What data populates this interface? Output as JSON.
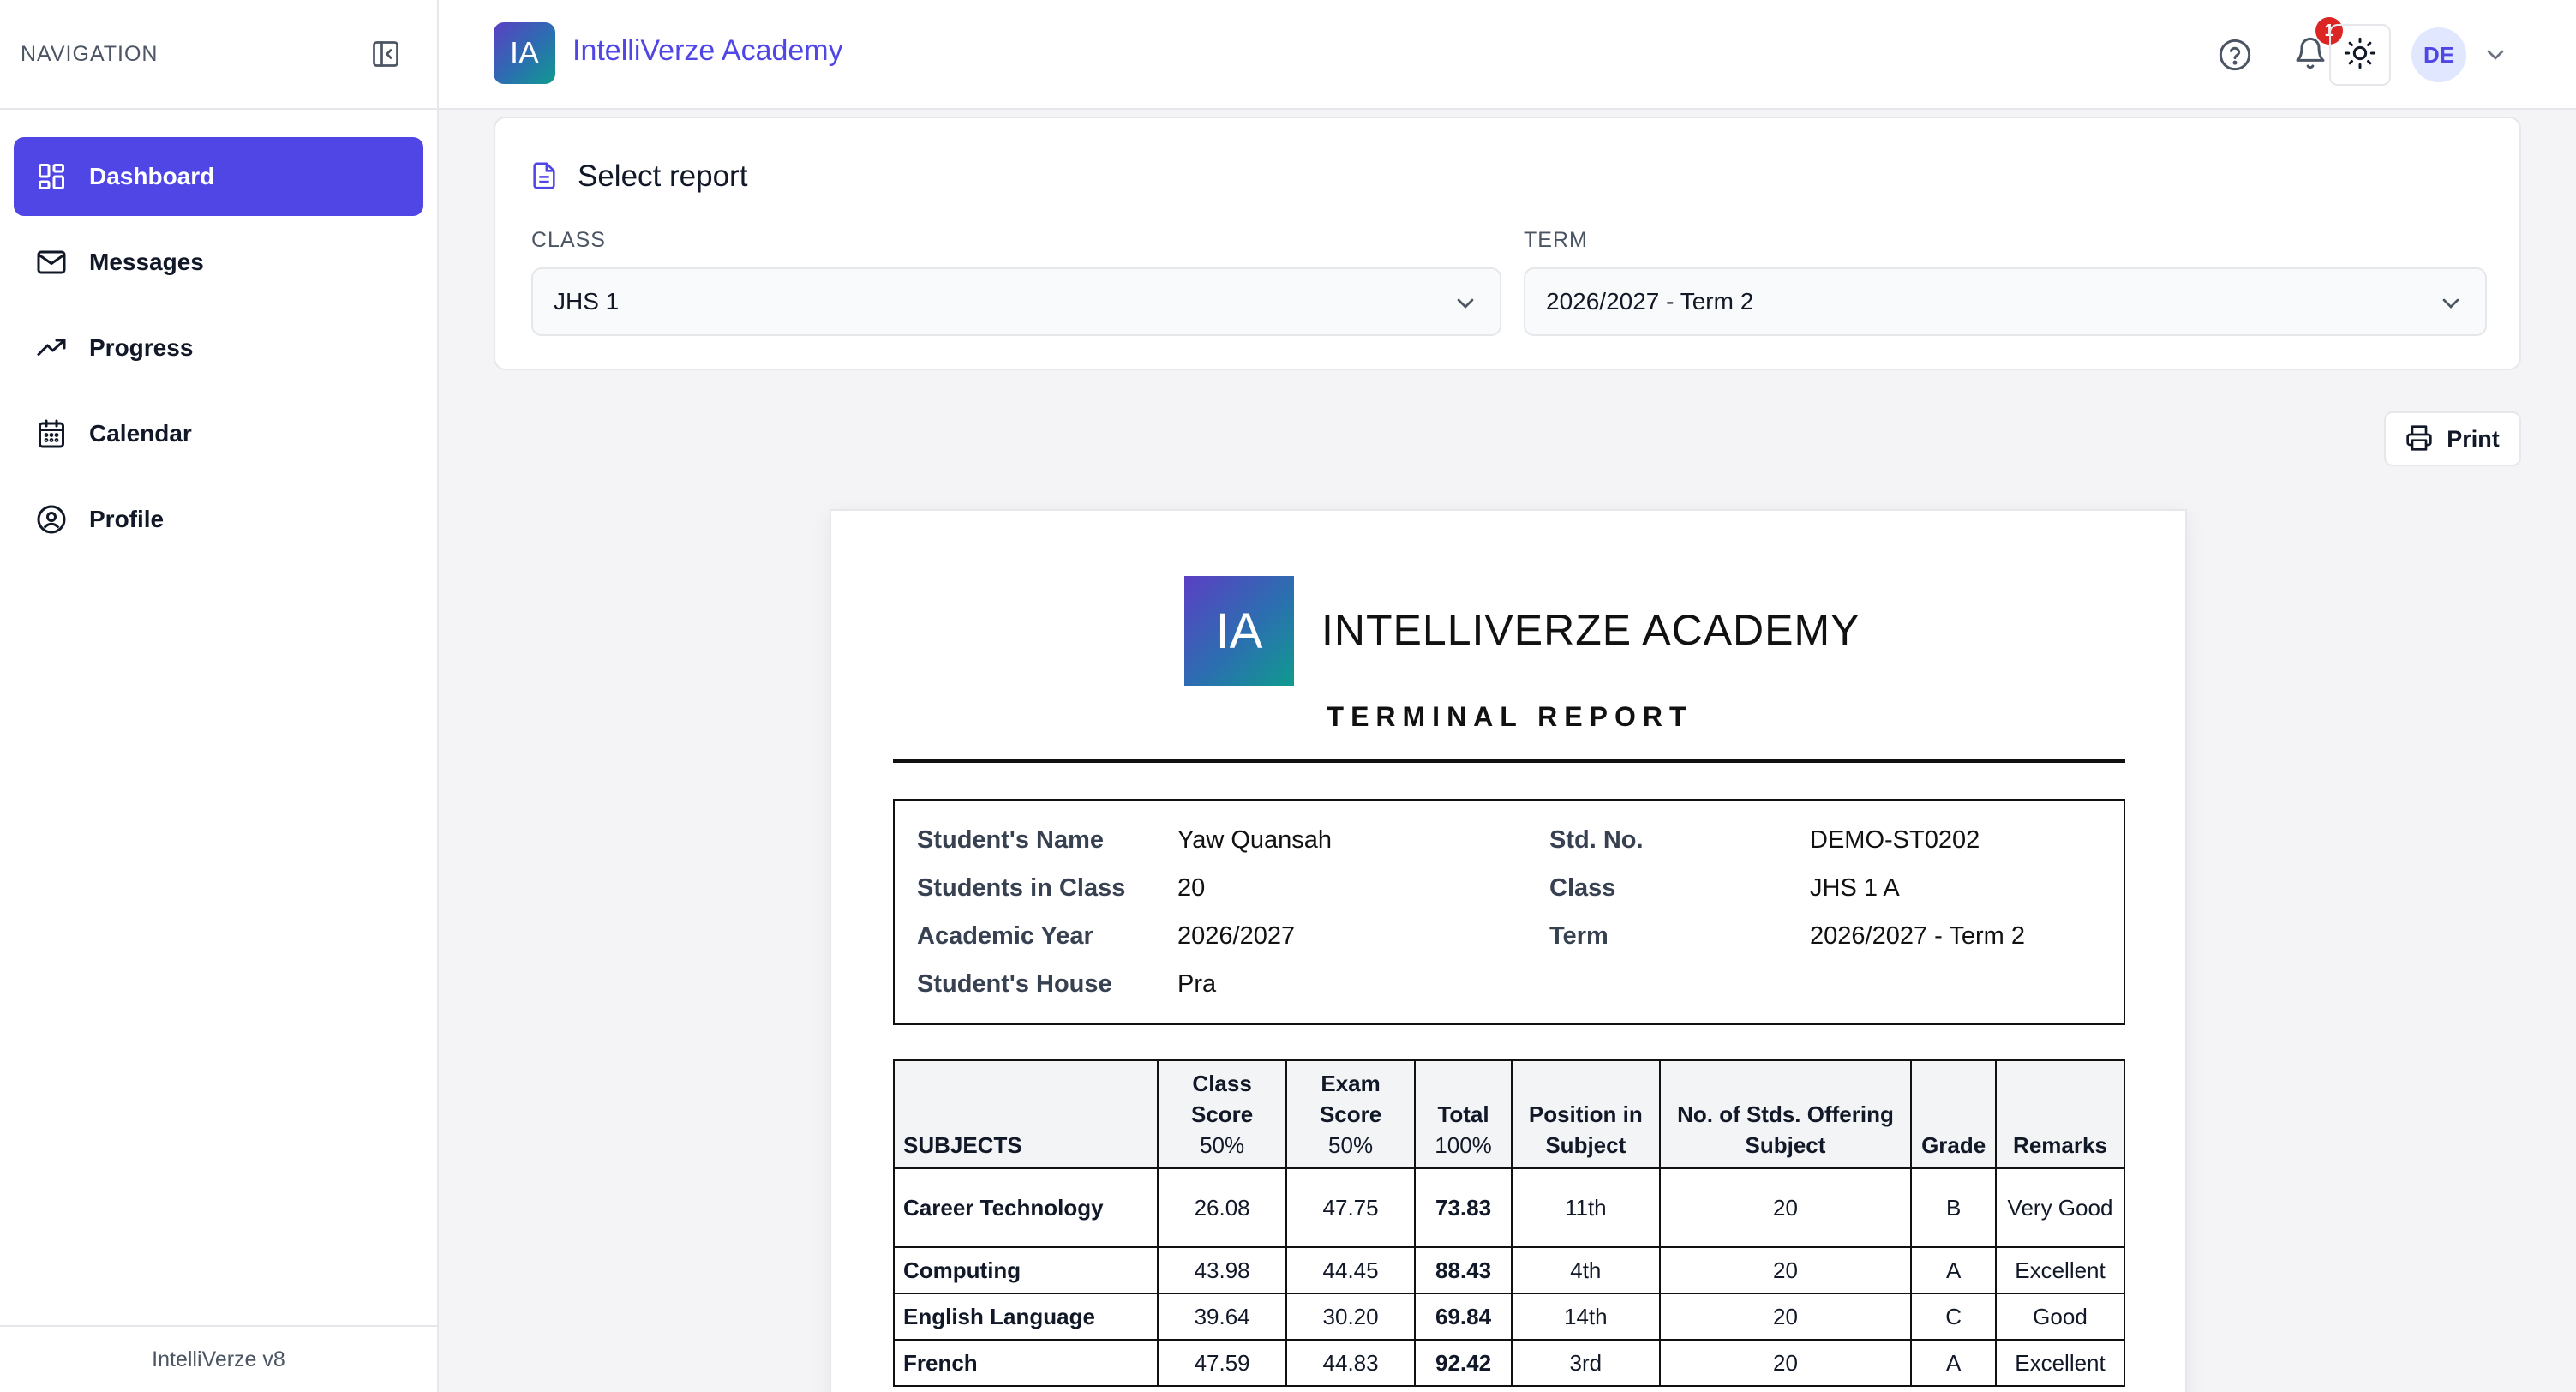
{
  "sidebar": {
    "title": "NAVIGATION",
    "items": [
      {
        "label": "Dashboard",
        "icon": "dashboard-icon",
        "active": true
      },
      {
        "label": "Messages",
        "icon": "mail-icon",
        "active": false
      },
      {
        "label": "Progress",
        "icon": "trending-up-icon",
        "active": false
      },
      {
        "label": "Calendar",
        "icon": "calendar-icon",
        "active": false
      },
      {
        "label": "Profile",
        "icon": "user-circle-icon",
        "active": false
      }
    ],
    "footer": "IntelliVerze v8"
  },
  "topbar": {
    "logo_text": "IA",
    "app_name": "IntelliVerze Academy",
    "notification_count": "1",
    "avatar_initials": "DE"
  },
  "select_report": {
    "title": "Select report",
    "class_label": "CLASS",
    "class_value": "JHS 1",
    "term_label": "TERM",
    "term_value": "2026/2027 - Term 2"
  },
  "print_label": "Print",
  "report": {
    "logo_text": "IA",
    "school_name": "INTELLIVERZE ACADEMY",
    "subtitle": "TERMINAL REPORT",
    "info": {
      "student_name_label": "Student's Name",
      "student_name": "Yaw Quansah",
      "std_no_label": "Std. No.",
      "std_no": "DEMO-ST0202",
      "students_in_class_label": "Students in Class",
      "students_in_class": "20",
      "class_label": "Class",
      "class": "JHS 1 A",
      "academic_year_label": "Academic Year",
      "academic_year": "2026/2027",
      "term_label": "Term",
      "term": "2026/2027 - Term 2",
      "house_label": "Student's House",
      "house": "Pra"
    },
    "table": {
      "headers": {
        "subjects": "SUBJECTS",
        "class_score": "Class Score",
        "class_score_pct": "50%",
        "exam_score": "Exam Score",
        "exam_score_pct": "50%",
        "total": "Total",
        "total_pct": "100%",
        "position": "Position in Subject",
        "offering": "No. of Stds. Offering Subject",
        "grade": "Grade",
        "remarks": "Remarks"
      },
      "rows": [
        {
          "subject": "Career Technology",
          "class_score": "26.08",
          "exam_score": "47.75",
          "total": "73.83",
          "position": "11th",
          "offering": "20",
          "grade": "B",
          "remarks": "Very Good"
        },
        {
          "subject": "Computing",
          "class_score": "43.98",
          "exam_score": "44.45",
          "total": "88.43",
          "position": "4th",
          "offering": "20",
          "grade": "A",
          "remarks": "Excellent"
        },
        {
          "subject": "English Language",
          "class_score": "39.64",
          "exam_score": "30.20",
          "total": "69.84",
          "position": "14th",
          "offering": "20",
          "grade": "C",
          "remarks": "Good"
        },
        {
          "subject": "French",
          "class_score": "47.59",
          "exam_score": "44.83",
          "total": "92.42",
          "position": "3rd",
          "offering": "20",
          "grade": "A",
          "remarks": "Excellent"
        }
      ]
    }
  }
}
